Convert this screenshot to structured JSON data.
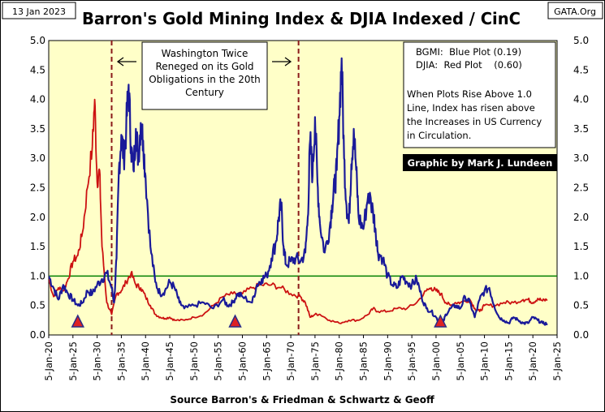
{
  "header": {
    "date": "13 Jan 2023",
    "title": "Barron's Gold Mining Index & DJIA Indexed / CinC",
    "source_tag": "GATA.Org"
  },
  "footer": {
    "source": "Source Barron's & Friedman & Schwartz & Geoff"
  },
  "annotations": {
    "washington_note": [
      "Washington Twice",
      "Reneged on its Gold",
      "Obligations in the 20th",
      "Century"
    ],
    "legend_lines": [
      "BGMI:  Blue Plot (0.19)",
      "DJIA:  Red Plot    (0.60)"
    ],
    "explain_lines": [
      "When Plots Rise Above 1.0",
      "Line, Index has risen above",
      "the Increases in US Currency",
      "in Circulation."
    ],
    "credit": "Graphic by Mark J. Lundeen"
  },
  "colors": {
    "plot_bg": "#ffffc8",
    "bgmi": "#1a1a99",
    "djia": "#cc1111",
    "ref_line": "#008000",
    "dashed": "#8b1a1a",
    "marker": "#dd2222",
    "credit_bg": "#000000"
  },
  "chart_data": {
    "type": "line",
    "title": "Barron's Gold Mining Index & DJIA Indexed / CinC",
    "xlabel": "",
    "ylabel": "",
    "ylim": [
      0,
      5
    ],
    "yticks": [
      "0.0",
      "0.5",
      "1.0",
      "1.5",
      "2.0",
      "2.5",
      "3.0",
      "3.5",
      "4.0",
      "4.5",
      "5.0"
    ],
    "xticks": [
      "5-Jan-20",
      "5-Jan-25",
      "5-Jan-30",
      "5-Jan-35",
      "5-Jan-40",
      "5-Jan-45",
      "5-Jan-50",
      "5-Jan-55",
      "5-Jan-60",
      "5-Jan-65",
      "5-Jan-70",
      "5-Jan-75",
      "5-Jan-80",
      "5-Jan-85",
      "5-Jan-90",
      "5-Jan-95",
      "5-Jan-00",
      "5-Jan-05",
      "5-Jan-10",
      "5-Jan-15",
      "5-Jan-20",
      "5-Jan-25"
    ],
    "reference_line": 1.0,
    "event_lines": [
      1933,
      1971.6
    ],
    "markers": [
      1926,
      1958.5,
      2000.9
    ],
    "series": [
      {
        "name": "BGMI",
        "points": [
          [
            1920,
            1.0
          ],
          [
            1921,
            0.8
          ],
          [
            1922,
            0.6
          ],
          [
            1923,
            0.85
          ],
          [
            1924,
            0.7
          ],
          [
            1925,
            0.6
          ],
          [
            1926,
            0.5
          ],
          [
            1927,
            0.55
          ],
          [
            1928,
            0.75
          ],
          [
            1929,
            0.7
          ],
          [
            1930,
            0.85
          ],
          [
            1931,
            0.95
          ],
          [
            1932,
            1.05
          ],
          [
            1933,
            0.8
          ],
          [
            1933.5,
            0.55
          ],
          [
            1934,
            1.3
          ],
          [
            1934.5,
            2.8
          ],
          [
            1935,
            3.4
          ],
          [
            1935.5,
            3.0
          ],
          [
            1936,
            3.5
          ],
          [
            1936.5,
            4.25
          ],
          [
            1937,
            3.2
          ],
          [
            1937.5,
            2.8
          ],
          [
            1938,
            3.5
          ],
          [
            1938.5,
            3.0
          ],
          [
            1939,
            3.6
          ],
          [
            1939.5,
            3.3
          ],
          [
            1940,
            2.7
          ],
          [
            1941,
            1.5
          ],
          [
            1942,
            0.9
          ],
          [
            1943,
            0.7
          ],
          [
            1944,
            0.75
          ],
          [
            1945,
            0.9
          ],
          [
            1946,
            0.8
          ],
          [
            1947,
            0.55
          ],
          [
            1948,
            0.45
          ],
          [
            1950,
            0.5
          ],
          [
            1952,
            0.55
          ],
          [
            1954,
            0.45
          ],
          [
            1956,
            0.6
          ],
          [
            1957,
            0.5
          ],
          [
            1958,
            0.55
          ],
          [
            1959,
            0.7
          ],
          [
            1960,
            0.65
          ],
          [
            1962,
            0.55
          ],
          [
            1963,
            0.85
          ],
          [
            1964,
            0.95
          ],
          [
            1965,
            1.0
          ],
          [
            1966,
            1.3
          ],
          [
            1967,
            1.6
          ],
          [
            1967.5,
            2.0
          ],
          [
            1968,
            2.2
          ],
          [
            1968.5,
            1.5
          ],
          [
            1969,
            1.2
          ],
          [
            1970,
            1.25
          ],
          [
            1971,
            1.3
          ],
          [
            1972,
            1.25
          ],
          [
            1973,
            1.4
          ],
          [
            1973.5,
            2.0
          ],
          [
            1974,
            3.3
          ],
          [
            1974.5,
            2.7
          ],
          [
            1975,
            3.7
          ],
          [
            1975.5,
            2.6
          ],
          [
            1976,
            1.9
          ],
          [
            1977,
            1.4
          ],
          [
            1978,
            1.8
          ],
          [
            1978.5,
            2.2
          ],
          [
            1979,
            2.5
          ],
          [
            1979.5,
            2.8
          ],
          [
            1980,
            3.7
          ],
          [
            1980.5,
            4.7
          ],
          [
            1981,
            3.0
          ],
          [
            1981.5,
            2.2
          ],
          [
            1982,
            1.9
          ],
          [
            1982.5,
            2.9
          ],
          [
            1983,
            3.5
          ],
          [
            1983.5,
            2.8
          ],
          [
            1984,
            2.0
          ],
          [
            1985,
            1.8
          ],
          [
            1986,
            2.4
          ],
          [
            1987,
            2.1
          ],
          [
            1987.5,
            1.8
          ],
          [
            1988,
            1.4
          ],
          [
            1989,
            1.3
          ],
          [
            1990,
            1.0
          ],
          [
            1991,
            0.85
          ],
          [
            1992,
            0.8
          ],
          [
            1993,
            1.0
          ],
          [
            1994,
            0.9
          ],
          [
            1995,
            0.85
          ],
          [
            1996,
            0.95
          ],
          [
            1997,
            0.65
          ],
          [
            1998,
            0.45
          ],
          [
            1999,
            0.4
          ],
          [
            2000,
            0.3
          ],
          [
            2000.9,
            0.19
          ],
          [
            2001.5,
            0.22
          ],
          [
            2002,
            0.35
          ],
          [
            2003,
            0.45
          ],
          [
            2004,
            0.5
          ],
          [
            2005,
            0.45
          ],
          [
            2006,
            0.65
          ],
          [
            2007,
            0.55
          ],
          [
            2008,
            0.3
          ],
          [
            2009,
            0.6
          ],
          [
            2010,
            0.75
          ],
          [
            2011,
            0.8
          ],
          [
            2012,
            0.5
          ],
          [
            2013,
            0.3
          ],
          [
            2014,
            0.25
          ],
          [
            2015,
            0.2
          ],
          [
            2016,
            0.3
          ],
          [
            2017,
            0.25
          ],
          [
            2018,
            0.2
          ],
          [
            2019,
            0.2
          ],
          [
            2020,
            0.3
          ],
          [
            2021,
            0.25
          ],
          [
            2022,
            0.2
          ],
          [
            2023,
            0.19
          ]
        ]
      },
      {
        "name": "DJIA",
        "points": [
          [
            1920,
            0.95
          ],
          [
            1921,
            0.65
          ],
          [
            1922,
            0.8
          ],
          [
            1923,
            0.75
          ],
          [
            1924,
            0.95
          ],
          [
            1925,
            1.25
          ],
          [
            1926,
            1.35
          ],
          [
            1927,
            1.75
          ],
          [
            1928,
            2.5
          ],
          [
            1929,
            3.2
          ],
          [
            1929.5,
            4.0
          ],
          [
            1930,
            2.6
          ],
          [
            1930.5,
            2.8
          ],
          [
            1931,
            1.5
          ],
          [
            1932,
            0.55
          ],
          [
            1933,
            0.35
          ],
          [
            1934,
            0.7
          ],
          [
            1935,
            0.75
          ],
          [
            1936,
            0.9
          ],
          [
            1937,
            1.05
          ],
          [
            1938,
            0.85
          ],
          [
            1939,
            0.8
          ],
          [
            1940,
            0.65
          ],
          [
            1941,
            0.5
          ],
          [
            1942,
            0.35
          ],
          [
            1943,
            0.3
          ],
          [
            1944,
            0.28
          ],
          [
            1945,
            0.3
          ],
          [
            1946,
            0.25
          ],
          [
            1948,
            0.25
          ],
          [
            1950,
            0.3
          ],
          [
            1952,
            0.35
          ],
          [
            1954,
            0.5
          ],
          [
            1956,
            0.65
          ],
          [
            1958,
            0.7
          ],
          [
            1960,
            0.7
          ],
          [
            1962,
            0.8
          ],
          [
            1964,
            0.85
          ],
          [
            1966,
            0.85
          ],
          [
            1968,
            0.8
          ],
          [
            1970,
            0.7
          ],
          [
            1972,
            0.65
          ],
          [
            1973,
            0.55
          ],
          [
            1974,
            0.3
          ],
          [
            1975,
            0.35
          ],
          [
            1976,
            0.35
          ],
          [
            1978,
            0.25
          ],
          [
            1980,
            0.2
          ],
          [
            1982,
            0.25
          ],
          [
            1984,
            0.25
          ],
          [
            1986,
            0.35
          ],
          [
            1987,
            0.45
          ],
          [
            1988,
            0.4
          ],
          [
            1990,
            0.4
          ],
          [
            1992,
            0.45
          ],
          [
            1994,
            0.45
          ],
          [
            1996,
            0.55
          ],
          [
            1998,
            0.75
          ],
          [
            1999,
            0.8
          ],
          [
            2000,
            0.75
          ],
          [
            2001,
            0.7
          ],
          [
            2002,
            0.55
          ],
          [
            2003,
            0.5
          ],
          [
            2004,
            0.55
          ],
          [
            2005,
            0.55
          ],
          [
            2007,
            0.6
          ],
          [
            2008,
            0.45
          ],
          [
            2009,
            0.4
          ],
          [
            2010,
            0.5
          ],
          [
            2012,
            0.5
          ],
          [
            2014,
            0.55
          ],
          [
            2016,
            0.55
          ],
          [
            2018,
            0.6
          ],
          [
            2019,
            0.6
          ],
          [
            2020,
            0.55
          ],
          [
            2021,
            0.62
          ],
          [
            2022,
            0.58
          ],
          [
            2023,
            0.6
          ]
        ]
      }
    ]
  }
}
